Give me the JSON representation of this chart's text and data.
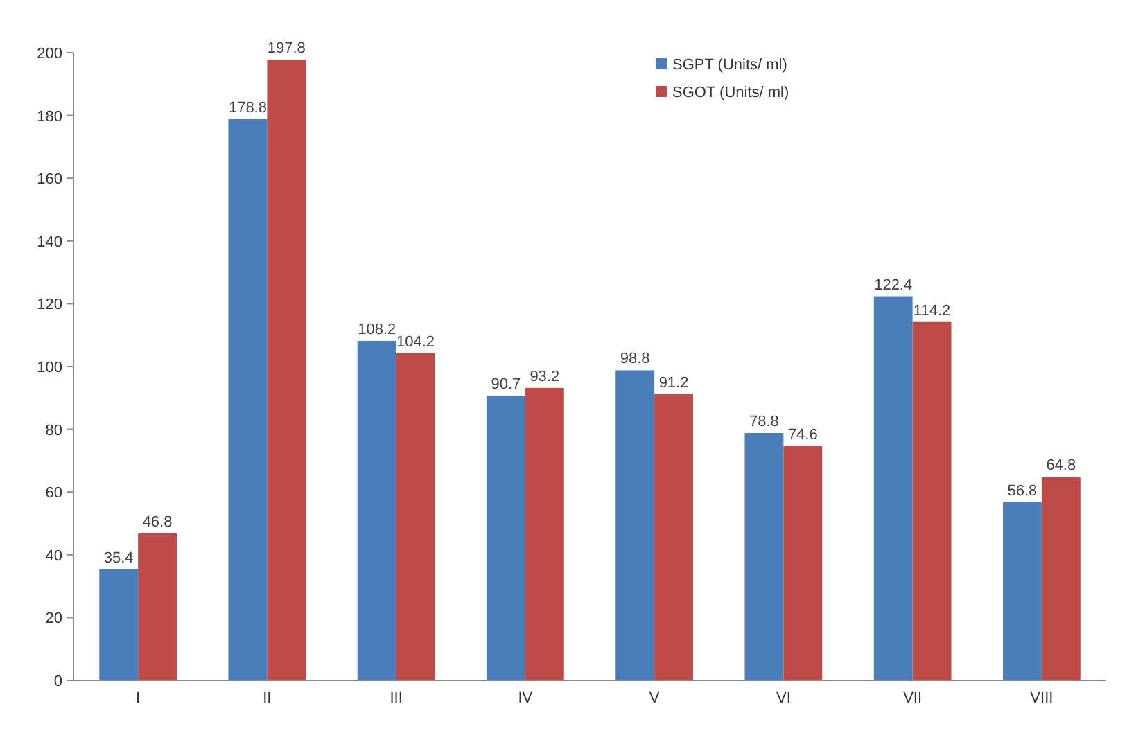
{
  "chart_data": {
    "type": "bar",
    "categories": [
      "I",
      "II",
      "III",
      "IV",
      "V",
      "VI",
      "VII",
      "VIII"
    ],
    "series": [
      {
        "name": "SGPT (Units/ ml)",
        "color": "#4a7ebb",
        "values": [
          35.4,
          178.8,
          108.2,
          90.7,
          98.8,
          78.8,
          122.4,
          56.8
        ]
      },
      {
        "name": "SGOT (Units/ ml)",
        "color": "#be4b48",
        "values": [
          46.8,
          197.8,
          104.2,
          93.2,
          91.2,
          74.6,
          114.2,
          64.8
        ]
      }
    ],
    "ylim": [
      0,
      200
    ],
    "yticks": [
      0,
      20,
      40,
      60,
      80,
      100,
      120,
      140,
      160,
      180,
      200
    ],
    "grid": false,
    "legend": "top",
    "data_labels": true
  }
}
